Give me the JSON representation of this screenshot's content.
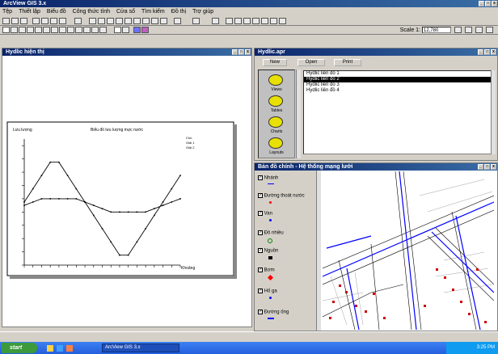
{
  "app": {
    "title": "ArcView GIS 3.x",
    "menu": [
      "Tệp",
      "Thiết lập",
      "Biểu đồ",
      "Công thức tính",
      "Cửa sổ",
      "Tìm kiếm",
      "Đồ thị",
      "Trợ giúp"
    ]
  },
  "toolbar": {
    "scale_label": "Scale 1:",
    "scale_value": "12,780"
  },
  "chart_window": {
    "title": "Hydlic hiện thị",
    "chart_data": {
      "type": "line",
      "title": "Biểu đồ lưu lượng mực nước",
      "ylabel": "Lưu lượng",
      "xlabel": "Khoảng",
      "x": [
        0,
        1,
        2,
        3,
        4,
        5,
        6,
        7,
        8,
        9,
        10,
        11,
        12,
        13,
        14,
        15,
        16,
        17,
        18
      ],
      "series": [
        {
          "values": [
            0.5,
            2.5,
            4.5,
            6.5,
            6.5,
            4.5,
            2.5,
            0.5,
            -1.5,
            -3.5,
            -5.5,
            -7.5,
            -7.5,
            -5.5,
            -3.5,
            -1.5,
            0.5,
            2.5,
            4.5
          ]
        },
        {
          "values": [
            0,
            0.5,
            1.0,
            1.0,
            1.0,
            1.0,
            1.0,
            0.5,
            0,
            -0.5,
            -1.0,
            -1.0,
            -1.0,
            -1.0,
            -1.0,
            -0.5,
            0,
            0.5,
            1.0
          ]
        }
      ],
      "ylim": [
        -9,
        10
      ],
      "legend": [
        "Chú",
        "Giải 1",
        "Giải 2"
      ]
    }
  },
  "project_window": {
    "title": "Hydlic.apr",
    "buttons": {
      "new": "New",
      "open": "Open",
      "print": "Print"
    },
    "icons": [
      "Views",
      "Tables",
      "Charts",
      "Layouts"
    ],
    "docs": [
      "Hydlic liên đồ 1",
      "Hydlic liên đồ 2",
      "Hydlic liên đồ 3",
      "Hydlic liên đồ 4"
    ],
    "selected_index": 1
  },
  "view_window": {
    "title": "Bản đồ chính - Hệ thống mạng lưới",
    "layers": [
      {
        "name": "Nhánh",
        "color": "#0000ff",
        "symbol": "line"
      },
      {
        "name": "Đường thoát nước",
        "color": "#ff0000",
        "symbol": "point"
      },
      {
        "name": "Van",
        "color": "#0000ff",
        "symbol": "point"
      },
      {
        "name": "Đồ nhiều",
        "color": "#008000",
        "symbol": "circle"
      },
      {
        "name": "Nguồn",
        "color": "#000000",
        "symbol": "square"
      },
      {
        "name": "Bơm",
        "color": "#ff0000",
        "symbol": "diamond"
      },
      {
        "name": "Hố ga",
        "color": "#0000ff",
        "symbol": "point"
      },
      {
        "name": "Đường ống",
        "color": "#0000ff",
        "symbol": "line"
      }
    ]
  },
  "taskbar": {
    "start": "start",
    "task": "ArcView GIS 3.x",
    "clock": "3:25 PM"
  }
}
